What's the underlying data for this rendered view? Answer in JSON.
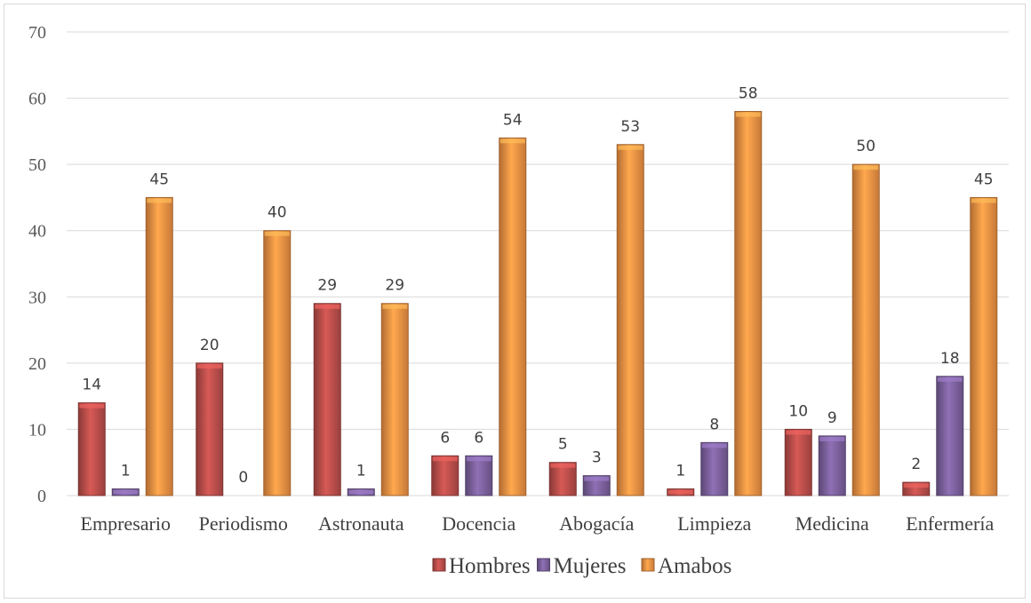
{
  "chart_data": {
    "type": "bar",
    "categories": [
      "Empresario",
      "Periodismo",
      "Astronauta",
      "Docencia",
      "Abogacía",
      "Limpieza",
      "Medicina",
      "Enfermería"
    ],
    "series": [
      {
        "name": "Hombres",
        "values": [
          14,
          20,
          29,
          6,
          5,
          1,
          10,
          2
        ],
        "color": "#c0504d"
      },
      {
        "name": "Mujeres",
        "values": [
          1,
          0,
          1,
          6,
          3,
          8,
          9,
          18
        ],
        "color": "#8064a2"
      },
      {
        "name": "Amabos",
        "values": [
          45,
          40,
          29,
          54,
          53,
          58,
          50,
          45
        ],
        "color": "#f79646"
      }
    ],
    "ylim": [
      0,
      70
    ],
    "yticks": [
      0,
      10,
      20,
      30,
      40,
      50,
      60,
      70
    ],
    "grid": true,
    "legend": "bottom",
    "data_labels": true
  }
}
